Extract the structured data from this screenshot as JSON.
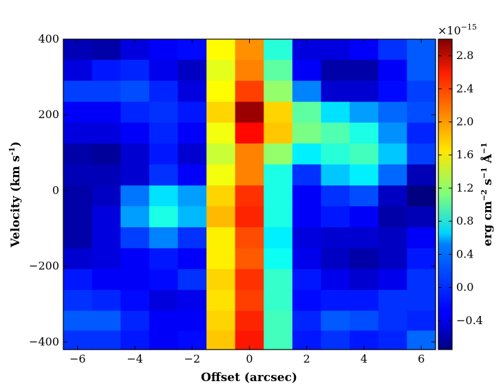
{
  "chart_data": {
    "type": "heatmap",
    "title": "",
    "xlabel": "Offset (arcsec)",
    "ylabel": "Velocity (km s",
    "ylabel_sup": "-1",
    "ylabel_close": ")",
    "xlim": [
      -6.5,
      6.5
    ],
    "ylim": [
      -420,
      400
    ],
    "x_ticks": [
      -6,
      -4,
      -2,
      0,
      2,
      4,
      6
    ],
    "x_tick_labels": [
      "−6",
      "−4",
      "−2",
      "0",
      "2",
      "4",
      "6"
    ],
    "y_ticks": [
      400,
      200,
      0,
      -200,
      -400
    ],
    "y_tick_labels": [
      "400",
      "200",
      "0",
      "−200",
      "−400"
    ],
    "x_centers": [
      -6,
      -5,
      -4,
      -3,
      -2,
      -1,
      0,
      1,
      2,
      3,
      4,
      5,
      6
    ],
    "y_centers": [
      373,
      318,
      262,
      207,
      152,
      97,
      41,
      -14,
      -69,
      -125,
      -180,
      -235,
      -290,
      -345,
      -395
    ],
    "values": [
      [
        -0.55,
        -0.6,
        -0.4,
        -0.3,
        -0.25,
        1.6,
        2.0,
        0.8,
        -0.4,
        -0.4,
        -0.3,
        -0.1,
        0.05
      ],
      [
        -0.4,
        -0.2,
        -0.15,
        -0.35,
        -0.5,
        1.5,
        2.05,
        1.0,
        -0.3,
        -0.6,
        -0.6,
        -0.3,
        0.05
      ],
      [
        -0.05,
        -0.05,
        0.0,
        -0.15,
        -0.4,
        1.6,
        2.3,
        1.2,
        0.2,
        -0.45,
        -0.45,
        -0.25,
        -0.05
      ],
      [
        -0.3,
        -0.3,
        -0.15,
        -0.1,
        -0.2,
        1.75,
        2.9,
        1.75,
        1.0,
        0.55,
        0.3,
        0.1,
        0.0
      ],
      [
        -0.4,
        -0.4,
        -0.3,
        -0.15,
        -0.3,
        1.55,
        2.5,
        1.8,
        1.1,
        0.95,
        0.75,
        0.25,
        -0.15
      ],
      [
        -0.6,
        -0.65,
        -0.45,
        -0.2,
        -0.45,
        1.4,
        2.05,
        1.2,
        0.6,
        0.8,
        0.9,
        0.45,
        -0.05
      ],
      [
        -0.55,
        -0.55,
        -0.45,
        -0.1,
        -0.3,
        1.55,
        2.05,
        0.75,
        -0.1,
        0.45,
        0.6,
        0.1,
        -0.55
      ],
      [
        -0.6,
        -0.5,
        0.15,
        0.55,
        0.3,
        1.75,
        2.35,
        0.75,
        -0.3,
        -0.1,
        0.0,
        -0.5,
        -0.8
      ],
      [
        -0.6,
        -0.4,
        0.3,
        0.75,
        0.4,
        1.85,
        2.4,
        0.75,
        -0.3,
        -0.2,
        -0.3,
        -0.6,
        -0.55
      ],
      [
        -0.6,
        -0.4,
        -0.05,
        0.2,
        -0.1,
        1.65,
        2.25,
        0.6,
        -0.4,
        -0.45,
        -0.45,
        -0.5,
        -0.3
      ],
      [
        -0.45,
        -0.4,
        -0.3,
        -0.2,
        -0.3,
        1.65,
        2.2,
        0.7,
        -0.35,
        -0.5,
        -0.6,
        -0.5,
        -0.2
      ],
      [
        -0.2,
        -0.3,
        -0.3,
        -0.25,
        -0.1,
        1.75,
        2.35,
        0.85,
        -0.2,
        -0.35,
        -0.45,
        -0.35,
        -0.1
      ],
      [
        -0.1,
        -0.15,
        -0.25,
        -0.4,
        -0.35,
        1.7,
        2.3,
        0.85,
        -0.25,
        -0.2,
        -0.2,
        -0.1,
        -0.1
      ],
      [
        0.05,
        0.05,
        -0.15,
        -0.3,
        -0.3,
        1.75,
        2.4,
        0.9,
        -0.15,
        0.05,
        0.0,
        -0.1,
        -0.15
      ],
      [
        -0.1,
        -0.1,
        -0.2,
        -0.3,
        -0.25,
        1.8,
        2.45,
        0.9,
        -0.2,
        -0.1,
        -0.2,
        -0.15,
        0.1
      ]
    ],
    "colorbar": {
      "min": -0.75,
      "max": 3.0,
      "ticks": [
        -0.4,
        0.0,
        0.4,
        0.8,
        1.2,
        1.6,
        2.0,
        2.4,
        2.8
      ],
      "tick_labels": [
        "−0.4",
        "0.0",
        "0.4",
        "0.8",
        "1.2",
        "1.6",
        "2.0",
        "2.4",
        "2.8"
      ],
      "offset_text": "×10",
      "offset_exp": "−15",
      "label_text": "erg cm",
      "label_sup1": "−2",
      "label_mid": " s",
      "label_sup2": "−1",
      "label_unit": " Å",
      "label_sup3": "−1"
    },
    "colormap": "jet",
    "grid": false,
    "legend": "none"
  }
}
